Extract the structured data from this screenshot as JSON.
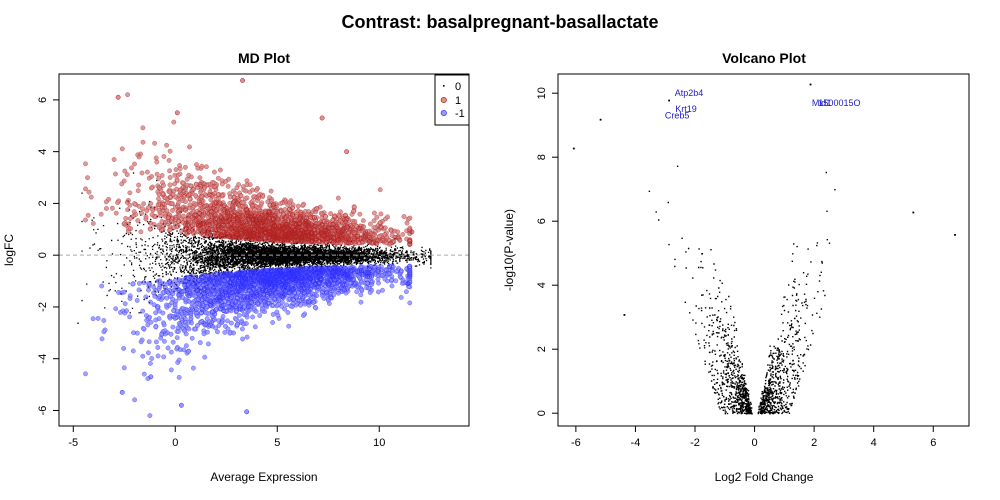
{
  "title": "Contrast: basalpregnant-basallactate",
  "colors": {
    "not_sig": "#000000",
    "up": "#b22222",
    "down": "#2f2fff",
    "gene_label": "#1a1acd",
    "zero_line": "#aaaaaa"
  },
  "chart_data": [
    {
      "type": "scatter",
      "title": "MD Plot",
      "xlabel": "Average Expression",
      "ylabel": "logFC",
      "xlim": [
        -5.7,
        14.4
      ],
      "ylim": [
        -6.6,
        7.0
      ],
      "xticks": [
        "-5",
        "0",
        "5",
        "10"
      ],
      "yticks": [
        "-6",
        "-4",
        "-2",
        "0",
        "2",
        "4",
        "6"
      ],
      "zero_line": true,
      "legend_position": "top-right",
      "legend": [
        {
          "status": "0",
          "label": "0"
        },
        {
          "status": "1",
          "label": "1"
        },
        {
          "status": "-1",
          "label": "-1"
        }
      ],
      "series_summary": [
        {
          "status": "0",
          "count_approx": 15000,
          "x_range": [
            -4.5,
            12.5
          ],
          "y_range": [
            -2.2,
            3.2
          ]
        },
        {
          "status": "1",
          "count_approx": 2500,
          "x_range": [
            -4.5,
            11.5
          ],
          "y_range": [
            0.3,
            6.8
          ]
        },
        {
          "status": "-1",
          "count_approx": 2500,
          "x_range": [
            -4.5,
            11.5
          ],
          "y_range": [
            -6.1,
            -0.3
          ]
        }
      ],
      "highlight_points": [
        {
          "status": "1",
          "x": 3.3,
          "y": 6.75
        },
        {
          "status": "1",
          "x": -2.8,
          "y": 6.1
        },
        {
          "status": "1",
          "x": 7.2,
          "y": 5.3
        },
        {
          "status": "1",
          "x": 0.1,
          "y": 5.5
        },
        {
          "status": "1",
          "x": 8.4,
          "y": 4.0
        },
        {
          "status": "1",
          "x": 11.6,
          "y": 0.9
        },
        {
          "status": "-1",
          "x": 0.3,
          "y": -5.8
        },
        {
          "status": "-1",
          "x": 3.5,
          "y": -6.05
        },
        {
          "status": "-1",
          "x": -2.6,
          "y": -5.3
        },
        {
          "status": "-1",
          "x": -1.2,
          "y": -4.7
        },
        {
          "status": "-1",
          "x": 11.4,
          "y": -1.1
        },
        {
          "status": "0",
          "x": -4.8,
          "y": -2.6
        }
      ]
    },
    {
      "type": "scatter",
      "title": "Volcano Plot",
      "xlabel": "Log2 Fold Change",
      "ylabel": "-log10(P-value)",
      "xlim": [
        -6.6,
        7.2
      ],
      "ylim": [
        -0.4,
        10.6
      ],
      "xticks": [
        "-6",
        "-4",
        "-2",
        "0",
        "2",
        "4",
        "6"
      ],
      "yticks": [
        "0",
        "2",
        "4",
        "6",
        "8",
        "10"
      ],
      "series_summary": [
        {
          "name": "",
          "count_approx": 20000,
          "x_range": [
            -6.2,
            6.8
          ],
          "y_range": [
            0,
            10.3
          ]
        }
      ],
      "highlight_points": [
        {
          "x": 1.85,
          "y": 10.3
        },
        {
          "x": -2.9,
          "y": 9.8
        },
        {
          "x": -5.2,
          "y": 9.2
        },
        {
          "x": -6.1,
          "y": 8.3
        },
        {
          "x": 6.7,
          "y": 5.6
        },
        {
          "x": 5.3,
          "y": 6.3
        },
        {
          "x": -4.4,
          "y": 3.1
        }
      ],
      "gene_labels": [
        {
          "text": "Atp2b4",
          "x": -2.2,
          "y": 10.0
        },
        {
          "text": "Krt19",
          "x": -2.3,
          "y": 9.5
        },
        {
          "text": "Creb5",
          "x": -2.6,
          "y": 9.3
        },
        {
          "text": "Mid1",
          "x": 2.25,
          "y": 9.7
        },
        {
          "text": "1500015O",
          "x": 2.85,
          "y": 9.7
        }
      ]
    }
  ]
}
